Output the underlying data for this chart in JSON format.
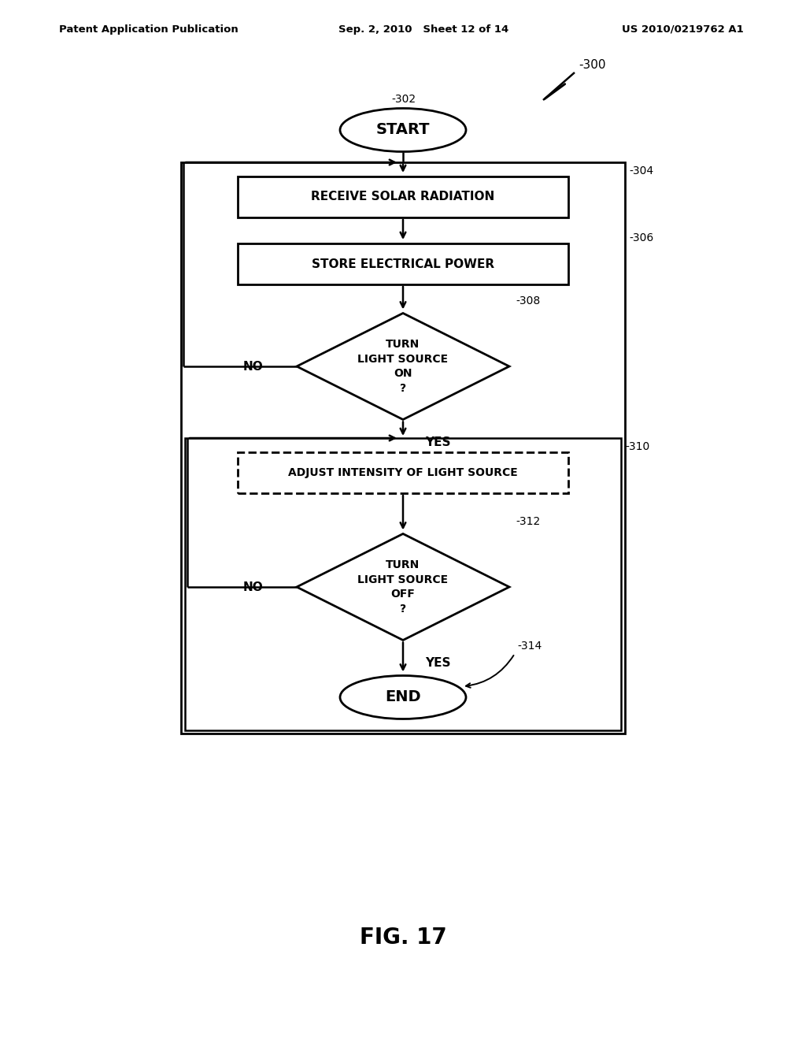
{
  "bg_color": "#ffffff",
  "header_left": "Patent Application Publication",
  "header_mid": "Sep. 2, 2010   Sheet 12 of 14",
  "header_right": "US 2010/0219762 A1",
  "fig_label": "FIG. 17",
  "line_color": "#000000",
  "text_color": "#000000"
}
